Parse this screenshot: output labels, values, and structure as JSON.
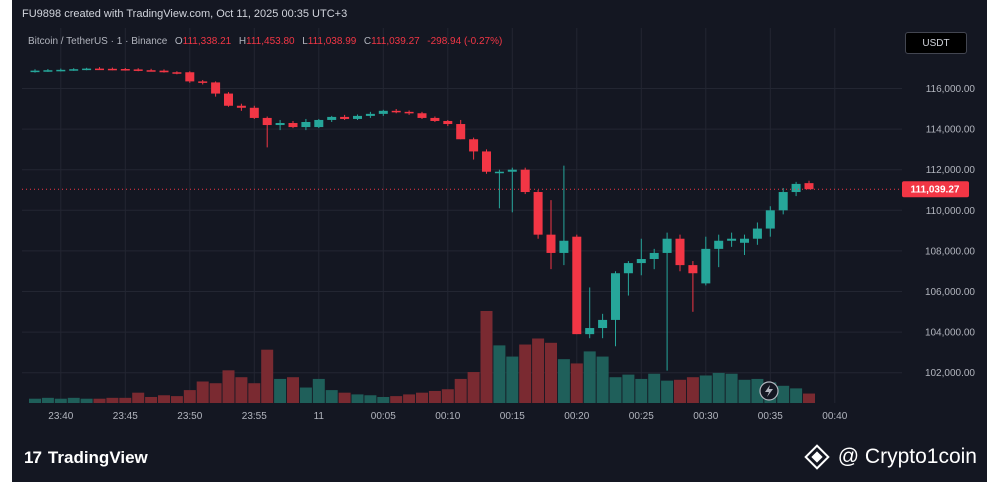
{
  "header": {
    "caption": "FU9898 created with TradingView.com, Oct 11, 2025 00:35 UTC+3"
  },
  "legend": {
    "symbol": "Bitcoin / TetherUS · 1 · Binance",
    "open_label": "O",
    "open": "111,338.21",
    "high_label": "H",
    "high": "111,453.80",
    "low_label": "L",
    "low": "111,038.99",
    "close_label": "C",
    "close": "111,039.27",
    "change": "-298.94 (-0.27%)"
  },
  "currency_button": {
    "label": "USDT"
  },
  "price_badge": {
    "label": "111,039.27"
  },
  "colors": {
    "up": "#26a69a",
    "down": "#f23645",
    "vol_up": "#1f5f5a",
    "vol_down": "#7a2a31",
    "background": "#141722",
    "grid": "#232632"
  },
  "chart_data": {
    "type": "candlestick",
    "ylim": [
      100500,
      117800
    ],
    "last_price": 111039.27,
    "y_ticks": [
      "116,000.00",
      "114,000.00",
      "112,000.00",
      "110,000.00",
      "108,000.00",
      "106,000.00",
      "104,000.00",
      "102,000.00"
    ],
    "y_tick_values": [
      116000,
      114000,
      112000,
      110000,
      108000,
      106000,
      104000,
      102000
    ],
    "x_ticks": [
      "23:40",
      "23:45",
      "23:50",
      "23:55",
      "11",
      "00:05",
      "00:10",
      "00:15",
      "00:20",
      "00:25",
      "00:30",
      "00:35",
      "00:40"
    ],
    "x_tick_index": [
      2,
      7,
      12,
      17,
      22,
      27,
      32,
      37,
      42,
      47,
      52,
      57,
      62
    ],
    "candles": [
      {
        "o": 116850,
        "h": 116950,
        "l": 116780,
        "c": 116880
      },
      {
        "o": 116880,
        "h": 116960,
        "l": 116820,
        "c": 116900
      },
      {
        "o": 116900,
        "h": 116980,
        "l": 116840,
        "c": 116920
      },
      {
        "o": 116920,
        "h": 117000,
        "l": 116870,
        "c": 116950
      },
      {
        "o": 116950,
        "h": 117020,
        "l": 116900,
        "c": 116980
      },
      {
        "o": 116980,
        "h": 117050,
        "l": 116920,
        "c": 116970
      },
      {
        "o": 116970,
        "h": 117030,
        "l": 116900,
        "c": 116960
      },
      {
        "o": 116960,
        "h": 117010,
        "l": 116880,
        "c": 116940
      },
      {
        "o": 116940,
        "h": 117000,
        "l": 116850,
        "c": 116900
      },
      {
        "o": 116900,
        "h": 116970,
        "l": 116840,
        "c": 116880
      },
      {
        "o": 116880,
        "h": 116940,
        "l": 116780,
        "c": 116800
      },
      {
        "o": 116800,
        "h": 116850,
        "l": 116700,
        "c": 116760
      },
      {
        "o": 116800,
        "h": 116850,
        "l": 116280,
        "c": 116350
      },
      {
        "o": 116350,
        "h": 116420,
        "l": 116200,
        "c": 116300
      },
      {
        "o": 116300,
        "h": 116350,
        "l": 115600,
        "c": 115750
      },
      {
        "o": 115750,
        "h": 115820,
        "l": 115100,
        "c": 115150
      },
      {
        "o": 115150,
        "h": 115250,
        "l": 114900,
        "c": 115050
      },
      {
        "o": 115050,
        "h": 115150,
        "l": 114500,
        "c": 114550
      },
      {
        "o": 114550,
        "h": 114620,
        "l": 113100,
        "c": 114200
      },
      {
        "o": 114200,
        "h": 114450,
        "l": 113950,
        "c": 114300
      },
      {
        "o": 114300,
        "h": 114400,
        "l": 114050,
        "c": 114100
      },
      {
        "o": 114100,
        "h": 114500,
        "l": 113950,
        "c": 114350
      },
      {
        "o": 114100,
        "h": 114500,
        "l": 114050,
        "c": 114450
      },
      {
        "o": 114450,
        "h": 114650,
        "l": 114350,
        "c": 114600
      },
      {
        "o": 114600,
        "h": 114700,
        "l": 114450,
        "c": 114500
      },
      {
        "o": 114500,
        "h": 114720,
        "l": 114450,
        "c": 114650
      },
      {
        "o": 114650,
        "h": 114850,
        "l": 114550,
        "c": 114750
      },
      {
        "o": 114750,
        "h": 114950,
        "l": 114650,
        "c": 114900
      },
      {
        "o": 114900,
        "h": 114990,
        "l": 114780,
        "c": 114850
      },
      {
        "o": 114850,
        "h": 114920,
        "l": 114700,
        "c": 114780
      },
      {
        "o": 114780,
        "h": 114850,
        "l": 114500,
        "c": 114550
      },
      {
        "o": 114550,
        "h": 114620,
        "l": 114350,
        "c": 114400
      },
      {
        "o": 114400,
        "h": 114450,
        "l": 114150,
        "c": 114250
      },
      {
        "o": 114250,
        "h": 114450,
        "l": 113500,
        "c": 113500
      },
      {
        "o": 113500,
        "h": 113580,
        "l": 112500,
        "c": 112900
      },
      {
        "o": 112900,
        "h": 113000,
        "l": 111800,
        "c": 111900
      },
      {
        "o": 111900,
        "h": 112000,
        "l": 110100,
        "c": 111900
      },
      {
        "o": 111900,
        "h": 112100,
        "l": 109900,
        "c": 112000
      },
      {
        "o": 112000,
        "h": 112100,
        "l": 110800,
        "c": 110900
      },
      {
        "o": 110900,
        "h": 111000,
        "l": 108600,
        "c": 108800
      },
      {
        "o": 108800,
        "h": 110500,
        "l": 107100,
        "c": 107900
      },
      {
        "o": 107900,
        "h": 112200,
        "l": 107300,
        "c": 108500
      },
      {
        "o": 108700,
        "h": 108800,
        "l": 103900,
        "c": 103900
      },
      {
        "o": 103900,
        "h": 106200,
        "l": 103700,
        "c": 104200
      },
      {
        "o": 104200,
        "h": 104900,
        "l": 103700,
        "c": 104600
      },
      {
        "o": 104600,
        "h": 107000,
        "l": 103300,
        "c": 106900
      },
      {
        "o": 106900,
        "h": 107500,
        "l": 105800,
        "c": 107400
      },
      {
        "o": 107400,
        "h": 108600,
        "l": 106800,
        "c": 107600
      },
      {
        "o": 107600,
        "h": 108100,
        "l": 107100,
        "c": 107900
      },
      {
        "o": 107900,
        "h": 108900,
        "l": 102100,
        "c": 108600
      },
      {
        "o": 108600,
        "h": 108800,
        "l": 107000,
        "c": 107300
      },
      {
        "o": 107300,
        "h": 107500,
        "l": 105000,
        "c": 106900
      },
      {
        "o": 106400,
        "h": 108700,
        "l": 106300,
        "c": 108100
      },
      {
        "o": 108100,
        "h": 108800,
        "l": 107200,
        "c": 108500
      },
      {
        "o": 108500,
        "h": 108900,
        "l": 108200,
        "c": 108600
      },
      {
        "o": 108400,
        "h": 108800,
        "l": 107800,
        "c": 108600
      },
      {
        "o": 108600,
        "h": 109400,
        "l": 108300,
        "c": 109100
      },
      {
        "o": 109100,
        "h": 110200,
        "l": 108700,
        "c": 110000
      },
      {
        "o": 110000,
        "h": 111100,
        "l": 109800,
        "c": 110900
      },
      {
        "o": 110900,
        "h": 111400,
        "l": 110700,
        "c": 111300
      },
      {
        "o": 111338.21,
        "h": 111453.8,
        "l": 111038.99,
        "c": 111039.27
      }
    ],
    "volume": [
      0.5,
      0.6,
      0.5,
      0.6,
      0.5,
      0.5,
      0.6,
      0.6,
      1.2,
      0.7,
      0.9,
      0.8,
      1.5,
      2.5,
      2.3,
      3.8,
      3.0,
      2.3,
      6.2,
      2.8,
      3.0,
      1.8,
      2.8,
      1.5,
      1.2,
      1.0,
      0.9,
      0.7,
      0.8,
      1.0,
      1.2,
      1.4,
      1.6,
      2.8,
      3.6,
      10.7,
      6.7,
      5.4,
      6.8,
      7.5,
      7.0,
      5.1,
      4.6,
      6.0,
      5.4,
      3.0,
      3.3,
      2.8,
      3.4,
      2.6,
      2.7,
      3.0,
      3.2,
      3.5,
      3.4,
      2.7,
      2.8,
      2.4,
      2.0,
      1.7,
      1.1
    ]
  },
  "footer": {
    "brand": "TradingView",
    "brand_mark": "17",
    "watermark": "@ Crypto1coin"
  }
}
